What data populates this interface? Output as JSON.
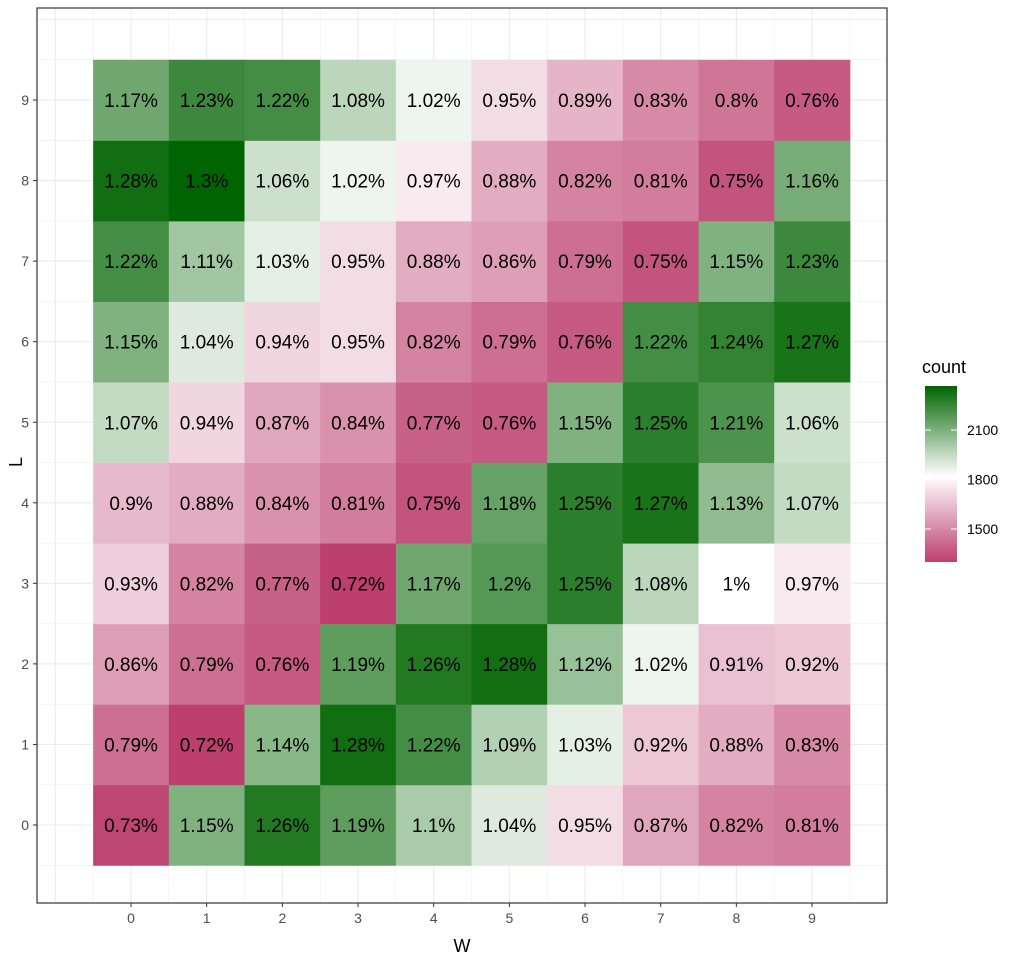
{
  "chart_data": {
    "type": "heatmap",
    "title": "",
    "xlabel": "W",
    "ylabel": "L",
    "x": [
      0,
      1,
      2,
      3,
      4,
      5,
      6,
      7,
      8,
      9
    ],
    "y": [
      0,
      1,
      2,
      3,
      4,
      5,
      6,
      7,
      8,
      9
    ],
    "xticks": [
      "0",
      "1",
      "2",
      "3",
      "4",
      "5",
      "6",
      "7",
      "8",
      "9"
    ],
    "yticks": [
      "0",
      "1",
      "2",
      "3",
      "4",
      "5",
      "6",
      "7",
      "8",
      "9"
    ],
    "cells_pct_by_L": {
      "9": [
        1.17,
        1.23,
        1.22,
        1.08,
        1.02,
        0.95,
        0.89,
        0.83,
        0.8,
        0.76
      ],
      "8": [
        1.28,
        1.3,
        1.06,
        1.02,
        0.97,
        0.88,
        0.82,
        0.81,
        0.75,
        1.16
      ],
      "7": [
        1.22,
        1.11,
        1.03,
        0.95,
        0.88,
        0.86,
        0.79,
        0.75,
        1.15,
        1.23
      ],
      "6": [
        1.15,
        1.04,
        0.94,
        0.95,
        0.82,
        0.79,
        0.76,
        1.22,
        1.24,
        1.27
      ],
      "5": [
        1.07,
        0.94,
        0.87,
        0.84,
        0.77,
        0.76,
        1.15,
        1.25,
        1.21,
        1.06
      ],
      "4": [
        0.9,
        0.88,
        0.84,
        0.81,
        0.75,
        1.18,
        1.25,
        1.27,
        1.13,
        1.07
      ],
      "3": [
        0.93,
        0.82,
        0.77,
        0.72,
        1.17,
        1.2,
        1.25,
        1.08,
        1,
        0.97
      ],
      "2": [
        0.86,
        0.79,
        0.76,
        1.19,
        1.26,
        1.28,
        1.12,
        1.02,
        0.91,
        0.92
      ],
      "1": [
        0.79,
        0.72,
        1.14,
        1.28,
        1.22,
        1.09,
        1.03,
        0.92,
        0.88,
        0.83
      ],
      "0": [
        0.73,
        1.15,
        1.26,
        1.19,
        1.1,
        1.04,
        0.95,
        0.87,
        0.82,
        0.81
      ]
    },
    "legend": {
      "title": "count",
      "ticks": [
        "2100",
        "1800",
        "1500"
      ],
      "tick_values": [
        2100,
        1800,
        1500
      ],
      "range": [
        1300,
        2367
      ],
      "midpoint": 1820,
      "placement": "right"
    },
    "colors": {
      "low": "#BC3F6D",
      "mid": "#FFFFFF",
      "high": "#006400"
    },
    "grid": true
  }
}
